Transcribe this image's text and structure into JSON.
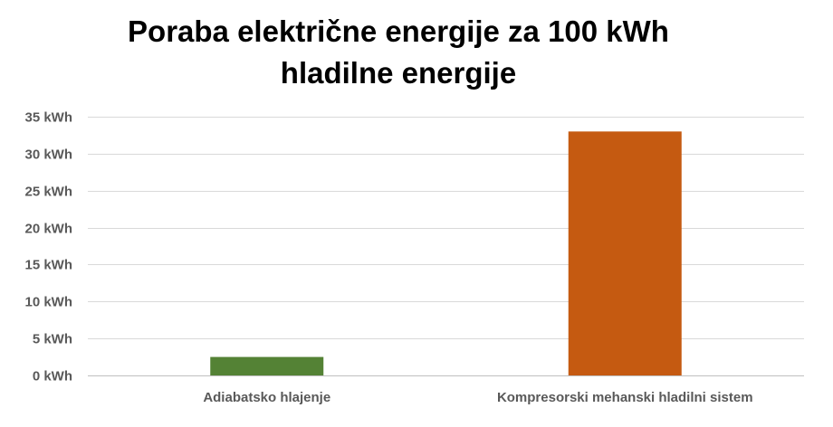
{
  "chart_data": {
    "type": "bar",
    "title_lines": [
      "Poraba električne energije za 100 kWh",
      "hladilne energije"
    ],
    "categories": [
      "Adiabatsko hlajenje",
      "Kompresorski mehanski hladilni sistem"
    ],
    "values": [
      2.5,
      33
    ],
    "bar_colors": [
      "#548235",
      "#c55a11"
    ],
    "ylim": [
      0,
      35
    ],
    "yticks": [
      0,
      5,
      10,
      15,
      20,
      25,
      30,
      35
    ],
    "ytick_labels": [
      "0 kWh",
      "5 kWh",
      "10 kWh",
      "15 kWh",
      "20 kWh",
      "25 kWh",
      "30 kWh",
      "35 kWh"
    ],
    "grid": true,
    "legend": "none"
  }
}
